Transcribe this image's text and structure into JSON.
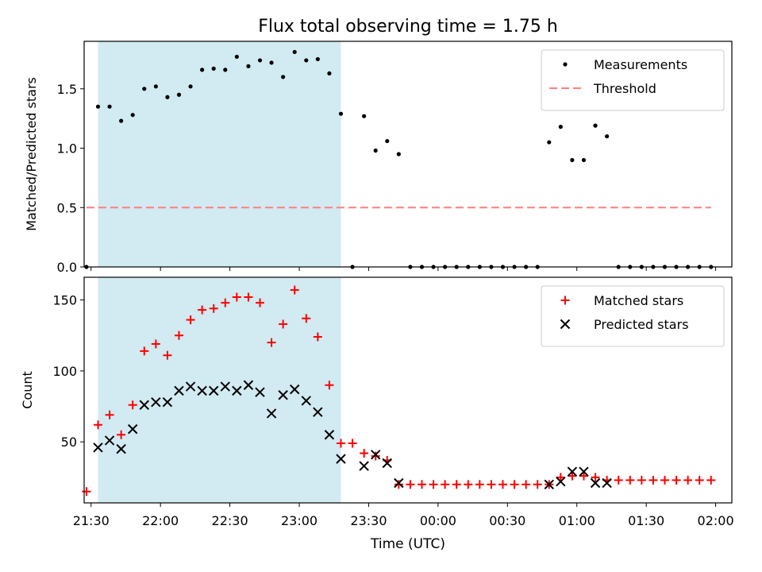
{
  "figure": {
    "title": "Flux total observing time = 1.75 h",
    "xlabel": "Time (UTC)"
  },
  "colors": {
    "shade": "#add8e6",
    "threshold": "#ff7f7f",
    "measurement": "#000000",
    "matched": "#ff0000",
    "predicted": "#000000"
  },
  "chart_data": [
    {
      "type": "scatter",
      "ylabel": "Matched/Predicted stars",
      "xlim": [
        "21:27",
        "02:07"
      ],
      "ylim": [
        0,
        1.9
      ],
      "yticks": [
        0.0,
        0.5,
        1.0,
        1.5
      ],
      "ytick_labels": [
        "0.0",
        "0.5",
        "1.0",
        "1.5"
      ],
      "xticks": [
        "21:30",
        "22:00",
        "22:30",
        "23:00",
        "23:30",
        "00:00",
        "00:30",
        "01:00",
        "01:30",
        "02:00"
      ],
      "shaded_interval": [
        "21:33",
        "23:18"
      ],
      "legend_position": "upper right",
      "series": [
        {
          "name": "Measurements",
          "marker": "dot",
          "x": [
            "21:28",
            "21:33",
            "21:38",
            "21:43",
            "21:48",
            "21:53",
            "21:58",
            "22:03",
            "22:08",
            "22:13",
            "22:18",
            "22:23",
            "22:28",
            "22:33",
            "22:38",
            "22:43",
            "22:48",
            "22:53",
            "22:58",
            "23:03",
            "23:08",
            "23:13",
            "23:18",
            "23:23",
            "23:28",
            "23:33",
            "23:38",
            "23:43",
            "23:48",
            "23:53",
            "23:58",
            "00:03",
            "00:08",
            "00:13",
            "00:18",
            "00:23",
            "00:28",
            "00:33",
            "00:38",
            "00:43",
            "00:48",
            "00:53",
            "00:58",
            "01:03",
            "01:08",
            "01:13",
            "01:18",
            "01:23",
            "01:28",
            "01:33",
            "01:38",
            "01:43",
            "01:48",
            "01:53",
            "01:58"
          ],
          "y": [
            0,
            1.35,
            1.35,
            1.23,
            1.28,
            1.5,
            1.52,
            1.43,
            1.45,
            1.52,
            1.66,
            1.67,
            1.66,
            1.77,
            1.69,
            1.74,
            1.72,
            1.6,
            1.81,
            1.74,
            1.75,
            1.63,
            1.29,
            0,
            1.27,
            0.98,
            1.06,
            0.95,
            0,
            0,
            0,
            0,
            0,
            0,
            0,
            0,
            0,
            0,
            0,
            0,
            1.05,
            1.18,
            0.9,
            0.9,
            1.19,
            1.1,
            0,
            0,
            0,
            0,
            0,
            0,
            0,
            0,
            0
          ]
        },
        {
          "name": "Threshold",
          "style": "dashed",
          "x": [
            "21:28",
            "01:58"
          ],
          "y": [
            0.5,
            0.5
          ]
        }
      ]
    },
    {
      "type": "scatter",
      "ylabel": "Count",
      "xlim": [
        "21:27",
        "02:07"
      ],
      "ylim": [
        7,
        166
      ],
      "yticks": [
        50,
        100,
        150
      ],
      "ytick_labels": [
        "50",
        "100",
        "150"
      ],
      "xticks": [
        "21:30",
        "22:00",
        "22:30",
        "23:00",
        "23:30",
        "00:00",
        "00:30",
        "01:00",
        "01:30",
        "02:00"
      ],
      "shaded_interval": [
        "21:33",
        "23:18"
      ],
      "legend_position": "upper right",
      "series": [
        {
          "name": "Matched stars",
          "marker": "plus",
          "x": [
            "21:28",
            "21:33",
            "21:38",
            "21:43",
            "21:48",
            "21:53",
            "21:58",
            "22:03",
            "22:08",
            "22:13",
            "22:18",
            "22:23",
            "22:28",
            "22:33",
            "22:38",
            "22:43",
            "22:48",
            "22:53",
            "22:58",
            "23:03",
            "23:08",
            "23:13",
            "23:18",
            "23:23",
            "23:28",
            "23:33",
            "23:38",
            "23:43",
            "23:48",
            "23:53",
            "23:58",
            "00:03",
            "00:08",
            "00:13",
            "00:18",
            "00:23",
            "00:28",
            "00:33",
            "00:38",
            "00:43",
            "00:48",
            "00:53",
            "00:58",
            "01:03",
            "01:08",
            "01:13",
            "01:18",
            "01:23",
            "01:28",
            "01:33",
            "01:38",
            "01:43",
            "01:48",
            "01:53",
            "01:58"
          ],
          "y": [
            15,
            62,
            69,
            55,
            76,
            114,
            119,
            111,
            125,
            136,
            143,
            144,
            148,
            152,
            152,
            148,
            120,
            133,
            157,
            137,
            124,
            90,
            49,
            49,
            42,
            40,
            37,
            20,
            20,
            20,
            20,
            20,
            20,
            20,
            20,
            20,
            20,
            20,
            20,
            20,
            20,
            25,
            26,
            26,
            25,
            23,
            23,
            23,
            23,
            23,
            23,
            23,
            23,
            23,
            23
          ]
        },
        {
          "name": "Predicted stars",
          "marker": "x",
          "x": [
            "21:33",
            "21:38",
            "21:43",
            "21:48",
            "21:53",
            "21:58",
            "22:03",
            "22:08",
            "22:13",
            "22:18",
            "22:23",
            "22:28",
            "22:33",
            "22:38",
            "22:43",
            "22:48",
            "22:53",
            "22:58",
            "23:03",
            "23:08",
            "23:13",
            "23:18",
            "23:28",
            "23:33",
            "23:38",
            "23:43",
            "00:48",
            "00:53",
            "00:58",
            "01:03",
            "01:08",
            "01:13"
          ],
          "y": [
            46,
            51,
            45,
            59,
            76,
            78,
            78,
            86,
            89,
            86,
            86,
            89,
            86,
            90,
            85,
            70,
            83,
            87,
            79,
            71,
            55,
            38,
            33,
            41,
            35,
            21,
            20,
            22,
            29,
            29,
            21,
            21
          ]
        }
      ]
    }
  ]
}
